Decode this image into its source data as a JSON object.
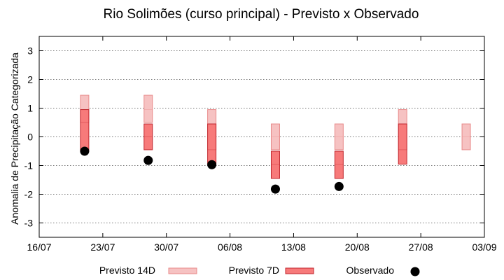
{
  "chart_data": {
    "type": "range-bar-with-points",
    "title": "Rio Solimões (curso principal) - Previsto x Observado",
    "xlabel": "",
    "ylabel": "Anomalia de Precipitação Categorizada",
    "ylim": [
      -3.5,
      3.5
    ],
    "yticks": [
      3,
      2,
      1,
      0,
      -1,
      -2,
      -3
    ],
    "xlim": [
      "2024-07-16",
      "2024-09-03"
    ],
    "xticks": [
      "16/07",
      "23/07",
      "30/07",
      "06/08",
      "13/08",
      "20/08",
      "27/08",
      "03/09"
    ],
    "grid": true,
    "legend_position": "bottom",
    "series": [
      {
        "name": "Previsto 14D",
        "type": "range",
        "color": "#f6c2c2",
        "edge": "#e88a8a",
        "points": [
          {
            "x": "2024-07-21",
            "low": 0.5,
            "high": 1.45,
            "mid": 0.95
          },
          {
            "x": "2024-07-28",
            "low": 0.5,
            "high": 1.45,
            "mid": 0.95
          },
          {
            "x": "2024-08-04",
            "low": -0.45,
            "high": 0.95,
            "mid": 0.45
          },
          {
            "x": "2024-08-11",
            "low": -0.45,
            "high": 0.45,
            "mid": 0.0
          },
          {
            "x": "2024-08-18",
            "low": -0.45,
            "high": 0.45,
            "mid": 0.0
          },
          {
            "x": "2024-08-25",
            "low": -0.45,
            "high": 0.95,
            "mid": 0.45
          },
          {
            "x": "2024-09-01",
            "low": -0.45,
            "high": 0.45,
            "mid": 0.0
          }
        ]
      },
      {
        "name": "Previsto 7D",
        "type": "range",
        "color": "#f77a7a",
        "edge": "#c0262d",
        "points": [
          {
            "x": "2024-07-21",
            "low": -0.5,
            "high": 0.95,
            "mid": 0.5
          },
          {
            "x": "2024-07-28",
            "low": -0.45,
            "high": 0.45,
            "mid": 0.0
          },
          {
            "x": "2024-08-04",
            "low": -0.95,
            "high": 0.45,
            "mid": -0.45
          },
          {
            "x": "2024-08-11",
            "low": -1.45,
            "high": -0.5,
            "mid": -0.95
          },
          {
            "x": "2024-08-18",
            "low": -1.45,
            "high": -0.5,
            "mid": -0.95
          },
          {
            "x": "2024-08-25",
            "low": -0.95,
            "high": 0.45,
            "mid": -0.45
          }
        ]
      },
      {
        "name": "Observado",
        "type": "scatter",
        "color": "#000000",
        "points": [
          {
            "x": "2024-07-21",
            "y": -0.5
          },
          {
            "x": "2024-07-28",
            "y": -0.82
          },
          {
            "x": "2024-08-04",
            "y": -0.97
          },
          {
            "x": "2024-08-11",
            "y": -1.82
          },
          {
            "x": "2024-08-18",
            "y": -1.73
          }
        ]
      }
    ]
  }
}
